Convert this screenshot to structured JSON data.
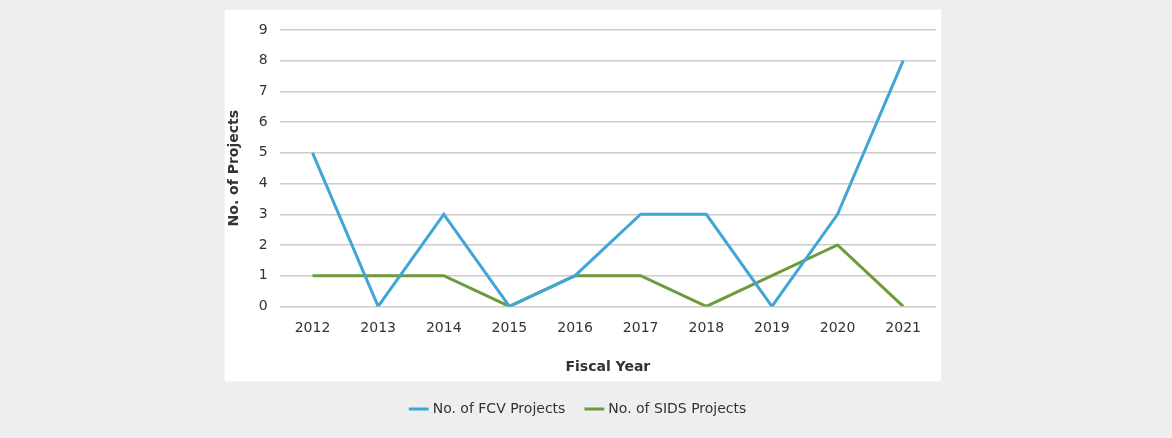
{
  "chart_data": {
    "type": "line",
    "x_label": "Fiscal Year",
    "y_label": "No. of Projects",
    "categories": [
      "2012",
      "2013",
      "2014",
      "2015",
      "2016",
      "2017",
      "2018",
      "2019",
      "2020",
      "2021"
    ],
    "series": [
      {
        "name": "No. of FCV Projects",
        "color": "#3fa6d7",
        "values": [
          5,
          0,
          3,
          0,
          1,
          3,
          3,
          0,
          3,
          8
        ]
      },
      {
        "name": "No. of SIDS Projects",
        "color": "#6b9b3a",
        "values": [
          1,
          1,
          1,
          0,
          1,
          1,
          0,
          1,
          2,
          0
        ]
      }
    ],
    "ylim": [
      0,
      9
    ],
    "yticks": [
      0,
      1,
      2,
      3,
      4,
      5,
      6,
      7,
      8,
      9
    ],
    "grid": true,
    "legend": "bottom"
  }
}
